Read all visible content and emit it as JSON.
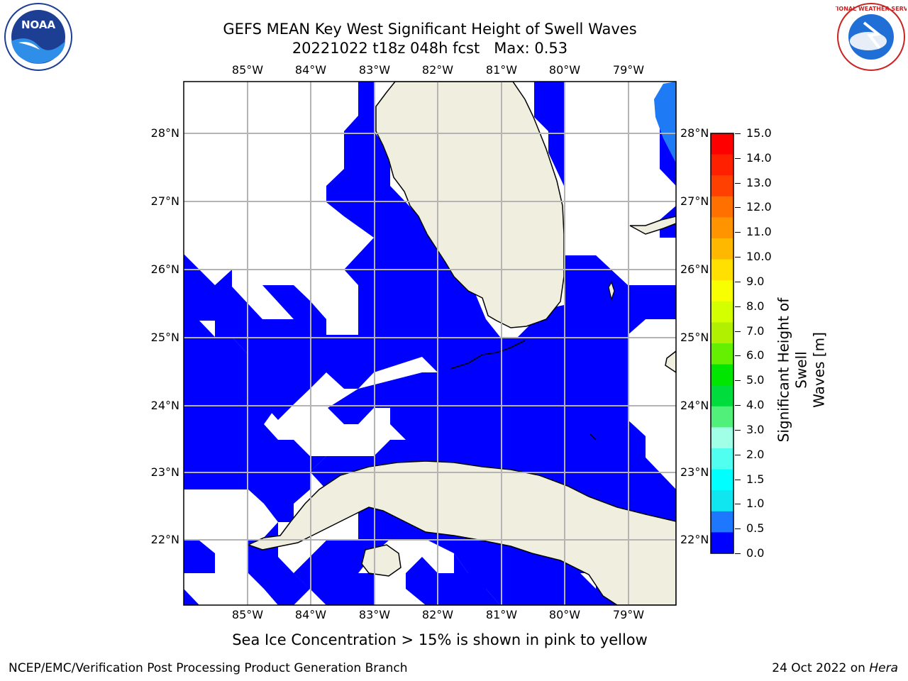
{
  "header": {
    "title": "GEFS MEAN Key West Significant Height of Swell Waves",
    "subtitle": "20221022 t18z 048h fcst   Max: 0.53"
  },
  "logos": {
    "left": "NOAA",
    "right": "NATIONAL WEATHER SERVICE"
  },
  "map": {
    "lon_labels": [
      "85°W",
      "84°W",
      "83°W",
      "82°W",
      "81°W",
      "80°W",
      "79°W"
    ],
    "lat_labels": [
      "28°N",
      "27°N",
      "26°N",
      "25°N",
      "24°N",
      "23°N",
      "22°N"
    ],
    "colors": {
      "ocean_low": "#0000ff",
      "ocean_mid": "#1f7af5",
      "land": "#efeedf",
      "grid": "#b4b4b4",
      "coast": "#000000"
    }
  },
  "colorbar": {
    "label": "Significant Height of Swell Waves [m]",
    "label_line1": "Significant Height of Swell",
    "label_line2": "Waves [m]",
    "ticks": [
      "15.0",
      "14.0",
      "13.0",
      "12.0",
      "11.0",
      "10.0",
      "9.0",
      "8.0",
      "7.0",
      "6.0",
      "5.0",
      "4.0",
      "3.0",
      "2.0",
      "1.5",
      "1.0",
      "0.5",
      "0.0"
    ],
    "colors_top_to_bottom": [
      "#ff0000",
      "#ff2000",
      "#ff4000",
      "#ff7000",
      "#ff9400",
      "#ffb800",
      "#ffe000",
      "#f8ff00",
      "#d4ff00",
      "#b0f000",
      "#64f000",
      "#00e600",
      "#00dc3c",
      "#50f07a",
      "#a0ffe6",
      "#50fff0",
      "#00ffff",
      "#0fe6f0",
      "#1e78ff",
      "#0000ff"
    ]
  },
  "footer": {
    "caption": "Sea Ice Concentration > 15% is shown in pink to yellow",
    "left": "NCEP/EMC/Verification Post Processing Product Generation Branch",
    "right_date": "24 Oct 2022 on ",
    "right_host": "Hera"
  }
}
